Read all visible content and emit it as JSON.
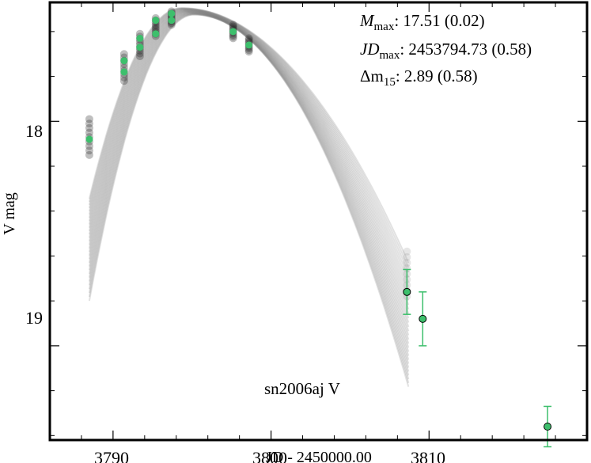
{
  "chart_data": {
    "type": "scatter",
    "title": "",
    "xlabel": "JD - 2450000.00",
    "ylabel": "V mag",
    "xlim": [
      3786.0,
      3820.0
    ],
    "ylim": [
      19.42,
      17.47
    ],
    "y_inverted": true,
    "grid": false,
    "x_ticks": [
      3790,
      3800,
      3810
    ],
    "x_tick_labels": [
      "3790",
      "3800",
      "3810"
    ],
    "y_ticks": [
      18,
      19
    ],
    "y_tick_labels": [
      "18",
      "19"
    ],
    "object_label": "sn2006aj V",
    "annotations": {
      "mmax_label": "M",
      "mmax_sub": "max",
      "mmax_value": ": 17.51 (0.02)",
      "jdmax_label": "JD",
      "jdmax_sub": "max",
      "jdmax_value": ": 2453794.73 (0.58)",
      "dm15_label": "Δm",
      "dm15_sub": "15",
      "dm15_value": ": 2.89 (0.58)"
    },
    "fit": {
      "peak_jd": 3794.73,
      "peak_mag": 17.51,
      "model_curves": 30
    },
    "series": [
      {
        "values": [
          {
            "x": 3788.5,
            "y": 18.08,
            "err": 0.02
          },
          {
            "x": 3790.7,
            "y": 17.78,
            "err": 0.02
          },
          {
            "x": 3790.7,
            "y": 17.73,
            "err": 0.02
          },
          {
            "x": 3791.7,
            "y": 17.67,
            "err": 0.02
          },
          {
            "x": 3791.7,
            "y": 17.63,
            "err": 0.02
          },
          {
            "x": 3792.7,
            "y": 17.61,
            "err": 0.02
          },
          {
            "x": 3792.7,
            "y": 17.55,
            "err": 0.02
          },
          {
            "x": 3793.7,
            "y": 17.55,
            "err": 0.02
          },
          {
            "x": 3793.7,
            "y": 17.52,
            "err": 0.02
          },
          {
            "x": 3797.6,
            "y": 17.6,
            "err": 0.02
          },
          {
            "x": 3798.6,
            "y": 17.66,
            "err": 0.02
          },
          {
            "x": 3808.6,
            "y": 18.76,
            "err": 0.1
          },
          {
            "x": 3809.6,
            "y": 18.88,
            "err": 0.12
          },
          {
            "x": 3817.5,
            "y": 19.36,
            "err": 0.09
          }
        ]
      }
    ],
    "colors": {
      "points": "#3dbf6c",
      "errorbar": "#3dbf6c",
      "model": "#7a7a7a",
      "frame": "#000000"
    }
  }
}
